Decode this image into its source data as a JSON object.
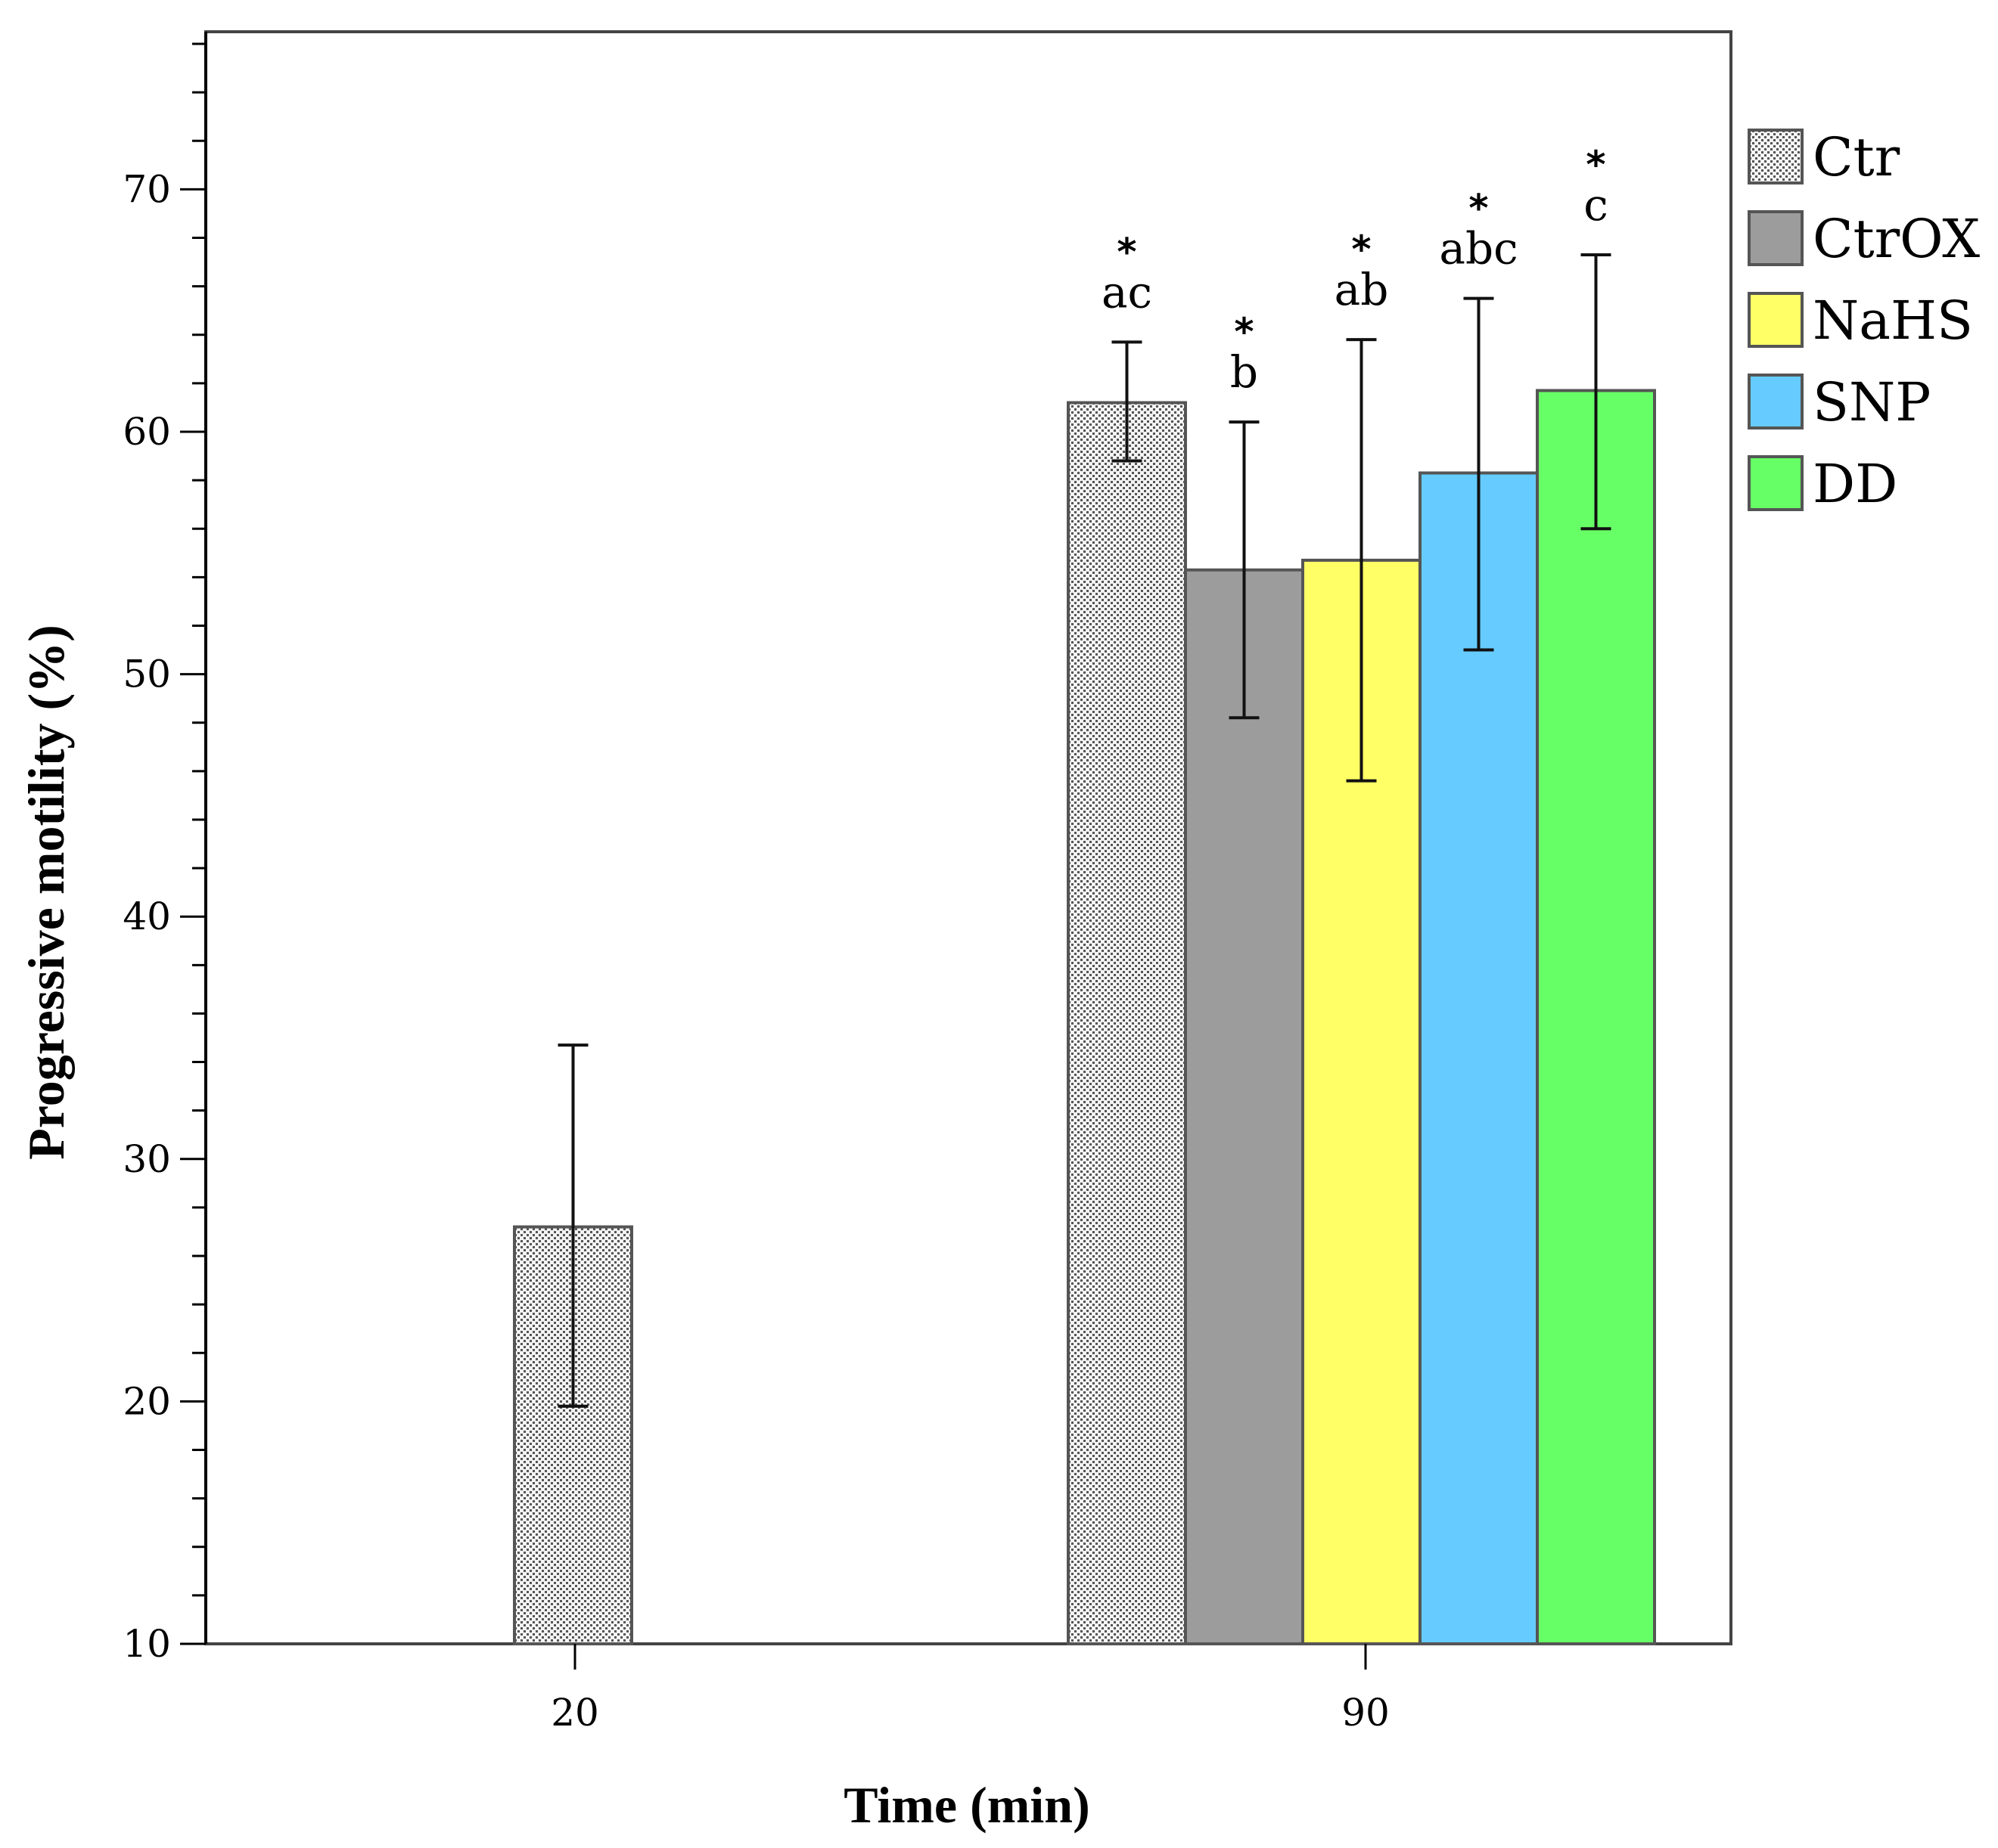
{
  "chart_data": {
    "type": "bar",
    "title": "",
    "xlabel": "Time (min)",
    "ylabel": "Progressive motility (%)",
    "ylim": [
      10,
      76.5
    ],
    "yticks": [
      10,
      20,
      30,
      40,
      50,
      60,
      70
    ],
    "grid": false,
    "legend_position": "right",
    "categories": [
      "20",
      "90"
    ],
    "series": [
      {
        "name": "Ctr",
        "color": "#f2f2f2",
        "pattern": "dots",
        "values": [
          27.2,
          61.2
        ],
        "errors": [
          {
            "low": 19.8,
            "high": 34.7
          },
          {
            "low": 58.8,
            "high": 63.7
          }
        ],
        "sig_letters": [
          "",
          "ac"
        ],
        "sig_stars": [
          "",
          "*"
        ]
      },
      {
        "name": "CtrOX",
        "color": "#9c9c9c",
        "values": [
          null,
          54.3
        ],
        "errors": [
          null,
          {
            "low": 48.2,
            "high": 60.4
          }
        ],
        "sig_letters": [
          "",
          "b"
        ],
        "sig_stars": [
          "",
          "*"
        ]
      },
      {
        "name": "NaHS",
        "color": "#ffff66",
        "values": [
          null,
          54.7
        ],
        "errors": [
          null,
          {
            "low": 45.6,
            "high": 63.8
          }
        ],
        "sig_letters": [
          "",
          "ab"
        ],
        "sig_stars": [
          "",
          "*"
        ]
      },
      {
        "name": "SNP",
        "color": "#66ccff",
        "values": [
          null,
          58.3
        ],
        "errors": [
          null,
          {
            "low": 51.0,
            "high": 65.5
          }
        ],
        "sig_letters": [
          "",
          "abc"
        ],
        "sig_stars": [
          "",
          "*"
        ]
      },
      {
        "name": "DD",
        "color": "#66ff66",
        "values": [
          null,
          61.7
        ],
        "errors": [
          null,
          {
            "low": 56.0,
            "high": 67.3
          }
        ],
        "sig_letters": [
          "",
          "c"
        ],
        "sig_stars": [
          "",
          "*"
        ]
      }
    ]
  }
}
